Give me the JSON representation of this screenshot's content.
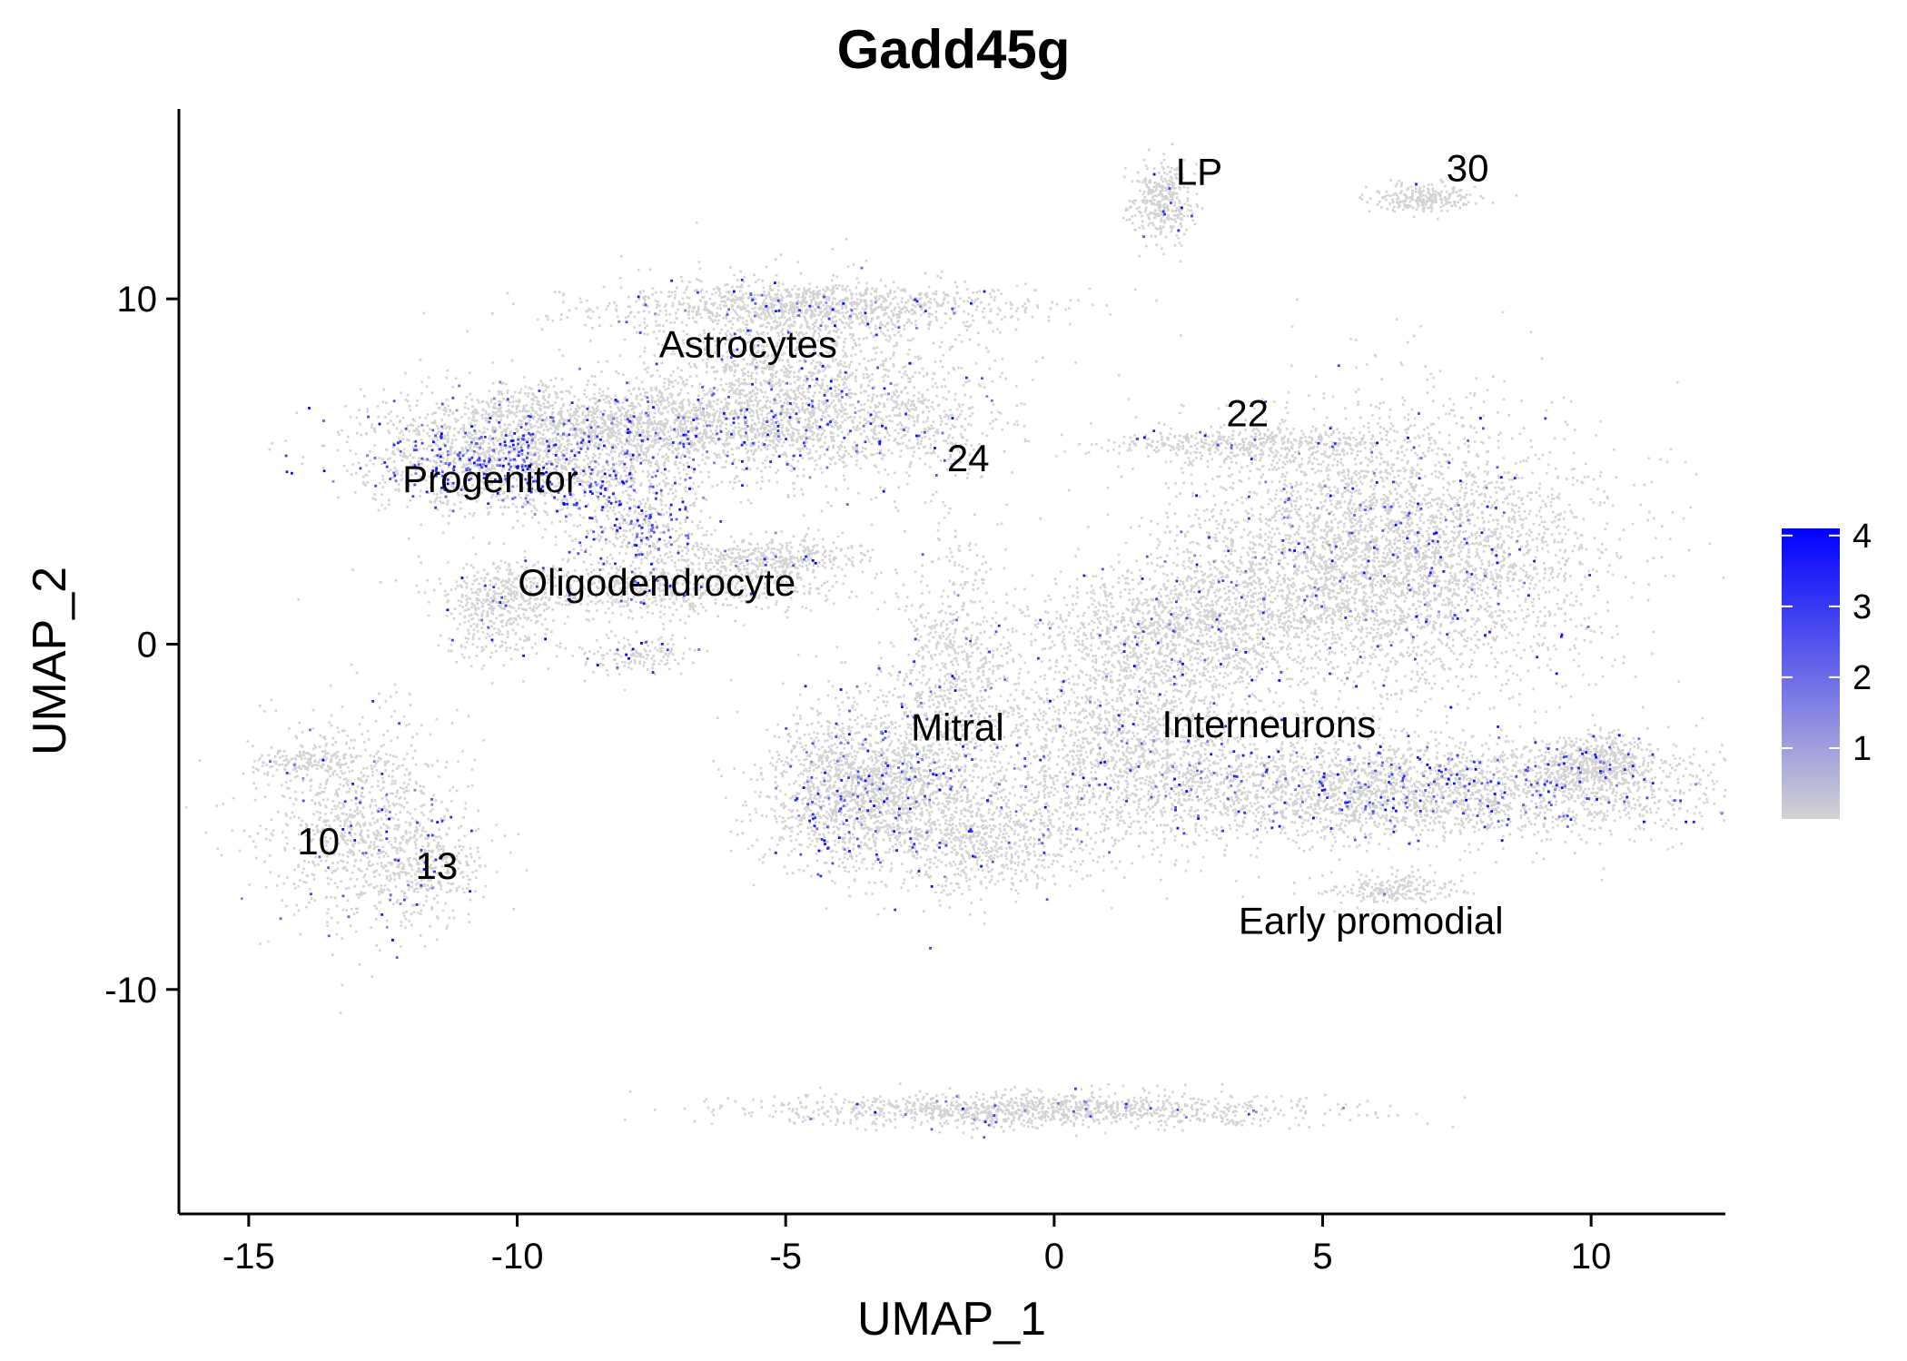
{
  "chart_data": {
    "type": "scatter",
    "title": "Gadd45g",
    "xlabel": "UMAP_1",
    "ylabel": "UMAP_2",
    "xlim": [
      -16.3,
      12.5
    ],
    "ylim": [
      -16.5,
      15.5
    ],
    "x_ticks": [
      -15,
      -10,
      -5,
      0,
      5,
      10
    ],
    "y_ticks": [
      -10,
      0,
      10
    ],
    "grid": false,
    "legend": {
      "position": "right",
      "type": "colorbar",
      "ticks": [
        1,
        2,
        3,
        4
      ],
      "range": [
        0,
        4.1
      ],
      "low_color": "#d3d3d3",
      "high_color": "#0000ff"
    },
    "point_color_low": "#d3d3d3",
    "point_color_high": "#0000ff",
    "cluster_labels": [
      {
        "text": "LP",
        "x": 2.7,
        "y": 13.6
      },
      {
        "text": "30",
        "x": 7.7,
        "y": 13.7
      },
      {
        "text": "Astrocytes",
        "x": -5.7,
        "y": 8.6
      },
      {
        "text": "22",
        "x": 3.6,
        "y": 6.6
      },
      {
        "text": "24",
        "x": -1.6,
        "y": 5.3
      },
      {
        "text": "Progenitor",
        "x": -10.5,
        "y": 4.7
      },
      {
        "text": "Oligodendrocyte",
        "x": -7.4,
        "y": 1.7
      },
      {
        "text": "Mitral",
        "x": -1.8,
        "y": -2.5
      },
      {
        "text": "Interneurons",
        "x": 4.0,
        "y": -2.4
      },
      {
        "text": "10",
        "x": -13.7,
        "y": -5.8
      },
      {
        "text": "13",
        "x": -11.5,
        "y": -6.5
      },
      {
        "text": "Early promodial",
        "x": 5.9,
        "y": -8.1
      }
    ],
    "clusters": [
      {
        "id": "astro_top",
        "cx": -4.5,
        "cy": 9.8,
        "sx": 2.0,
        "sy": 0.35,
        "n": 1100,
        "expr": 0.04
      },
      {
        "id": "astro_body",
        "cx": -4.8,
        "cy": 7.5,
        "sx": 1.6,
        "sy": 1.3,
        "n": 1600,
        "expr": 0.06
      },
      {
        "id": "astro_band",
        "cx": -6.5,
        "cy": 6.2,
        "sx": 2.2,
        "sy": 0.55,
        "n": 1200,
        "expr": 0.1
      },
      {
        "id": "progenitor",
        "cx": -10.0,
        "cy": 5.2,
        "sx": 1.5,
        "sy": 0.7,
        "n": 1400,
        "expr": 0.22
      },
      {
        "id": "prog_top",
        "cx": -9.0,
        "cy": 6.6,
        "sx": 1.7,
        "sy": 0.5,
        "n": 700,
        "expr": 0.03
      },
      {
        "id": "stream",
        "cx": -7.8,
        "cy": 3.4,
        "sx": 0.7,
        "sy": 0.9,
        "n": 500,
        "expr": 0.25
      },
      {
        "id": "oligo_left",
        "cx": -10.3,
        "cy": 1.0,
        "sx": 0.5,
        "sy": 0.7,
        "n": 400,
        "expr": 0.03
      },
      {
        "id": "oligo_band",
        "cx": -7.5,
        "cy": 1.6,
        "sx": 1.8,
        "sy": 0.4,
        "n": 700,
        "expr": 0.03
      },
      {
        "id": "oligo_right",
        "cx": -5.3,
        "cy": 2.5,
        "sx": 0.8,
        "sy": 0.3,
        "n": 400,
        "expr": 0.04
      },
      {
        "id": "oligo_tail",
        "cx": -7.8,
        "cy": -0.3,
        "sx": 0.6,
        "sy": 0.3,
        "n": 150,
        "expr": 0.05
      },
      {
        "id": "c24",
        "cx": -2.2,
        "cy": 6.2,
        "sx": 0.6,
        "sy": 1.0,
        "n": 180,
        "expr": 0.02
      },
      {
        "id": "lp",
        "cx": 2.0,
        "cy": 12.8,
        "sx": 0.3,
        "sy": 0.55,
        "n": 350,
        "expr": 0.01
      },
      {
        "id": "c30",
        "cx": 6.9,
        "cy": 12.9,
        "sx": 0.5,
        "sy": 0.2,
        "n": 250,
        "expr": 0.01
      },
      {
        "id": "c22",
        "cx": 3.7,
        "cy": 5.8,
        "sx": 1.4,
        "sy": 0.25,
        "n": 450,
        "expr": 0.02
      },
      {
        "id": "c10",
        "cx": -13.0,
        "cy": -5.0,
        "sx": 0.9,
        "sy": 1.6,
        "n": 900,
        "expr": 0.05
      },
      {
        "id": "c10_top",
        "cx": -14.0,
        "cy": -3.4,
        "sx": 0.5,
        "sy": 0.2,
        "n": 120,
        "expr": 0.02
      },
      {
        "id": "c13",
        "cx": -11.7,
        "cy": -6.5,
        "sx": 0.6,
        "sy": 0.8,
        "n": 350,
        "expr": 0.06
      },
      {
        "id": "mitral",
        "cx": -3.6,
        "cy": -4.2,
        "sx": 0.9,
        "sy": 1.2,
        "n": 1800,
        "expr": 0.08
      },
      {
        "id": "mitral_stalk",
        "cx": -1.9,
        "cy": -1.5,
        "sx": 0.6,
        "sy": 2.2,
        "n": 900,
        "expr": 0.04
      },
      {
        "id": "mitral_bottom",
        "cx": -1.2,
        "cy": -5.7,
        "sx": 0.9,
        "sy": 0.8,
        "n": 600,
        "expr": 0.04
      },
      {
        "id": "center",
        "cx": 1.2,
        "cy": -2.5,
        "sx": 1.3,
        "sy": 1.6,
        "n": 1500,
        "expr": 0.04
      },
      {
        "id": "inter_top",
        "cx": 6.2,
        "cy": 2.6,
        "sx": 1.9,
        "sy": 2.0,
        "n": 4200,
        "expr": 0.04
      },
      {
        "id": "inter_left",
        "cx": 2.5,
        "cy": 0.5,
        "sx": 1.3,
        "sy": 1.0,
        "n": 1200,
        "expr": 0.04
      },
      {
        "id": "inter_band",
        "cx": 6.5,
        "cy": -4.2,
        "sx": 3.3,
        "sy": 0.75,
        "n": 3200,
        "expr": 0.09
      },
      {
        "id": "inter_right",
        "cx": 10.1,
        "cy": -3.4,
        "sx": 0.5,
        "sy": 0.4,
        "n": 500,
        "expr": 0.04
      },
      {
        "id": "early",
        "cx": 6.4,
        "cy": -7.1,
        "sx": 0.6,
        "sy": 0.25,
        "n": 220,
        "expr": 0.02
      },
      {
        "id": "bottom_band",
        "cx": -0.5,
        "cy": -13.5,
        "sx": 2.6,
        "sy": 0.25,
        "n": 1200,
        "expr": 0.03
      }
    ]
  }
}
